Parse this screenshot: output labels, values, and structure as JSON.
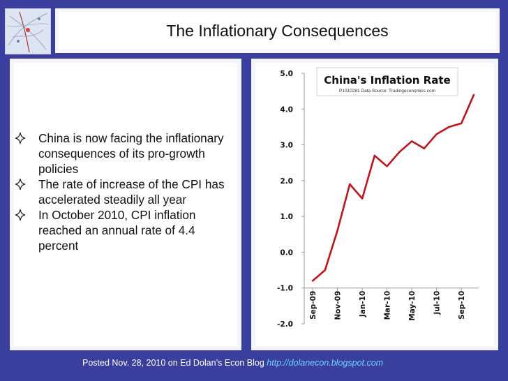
{
  "slide": {
    "title": "The Inflationary Consequences",
    "bullets": [
      "China is now facing the inflationary consequences of its pro-growth policies",
      "The rate of increase of the CPI has accelerated steadily all year",
      "In October 2010, CPI inflation reached an annual rate of 4.4 percent"
    ],
    "footer_text": "Posted Nov. 28, 2010 on Ed Dolan’s Econ Blog ",
    "footer_url": "http://dolanecon.blogspot.com"
  },
  "chart_data": {
    "type": "line",
    "title": "China's Inflation Rate",
    "subtitle": "P1010281 Data Source: Tradingeconomics.com",
    "xlabel": "",
    "ylabel": "",
    "ylim": [
      -2.0,
      5.0
    ],
    "yticks": [
      "-2.0",
      "-1.0",
      "0.0",
      "1.0",
      "2.0",
      "3.0",
      "4.0",
      "5.0"
    ],
    "ytick_values": [
      -2,
      -1,
      0,
      1,
      2,
      3,
      4,
      5
    ],
    "xtick_labels": [
      "Sep-09",
      "Nov-09",
      "Jan-10",
      "Mar-10",
      "May-10",
      "Jul-10",
      "Sep-10"
    ],
    "grid": false,
    "line_color": "#c0141c",
    "series": [
      {
        "x": [
          "Sep-09",
          "Oct-09",
          "Nov-09",
          "Dec-09",
          "Jan-10",
          "Feb-10",
          "Mar-10",
          "Apr-10",
          "May-10",
          "Jun-10",
          "Jul-10",
          "Aug-10",
          "Sep-10",
          "Oct-10"
        ],
        "values": [
          -0.8,
          -0.5,
          0.6,
          1.9,
          1.5,
          2.7,
          2.4,
          2.8,
          3.1,
          2.9,
          3.3,
          3.5,
          3.6,
          4.4
        ]
      }
    ]
  }
}
